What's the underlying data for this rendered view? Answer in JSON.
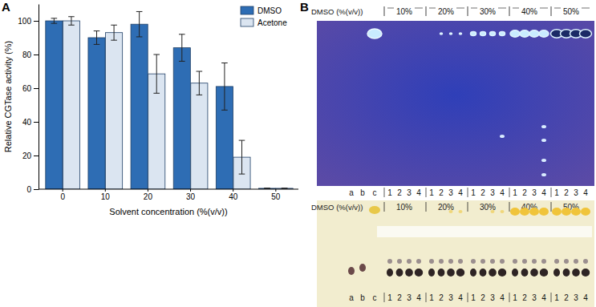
{
  "chart_data": {
    "type": "bar",
    "x_label": "Solvent concentration (%(v/v))",
    "y_label": "Relative CGTase activity (%)",
    "categories": [
      0,
      10,
      20,
      30,
      40,
      50
    ],
    "series": [
      {
        "name": "DMSO",
        "color": "#2e6db4",
        "values": [
          100,
          90,
          98,
          84,
          61,
          0.5
        ],
        "error": [
          1.5,
          4,
          7.5,
          8,
          14,
          0
        ]
      },
      {
        "name": "Acetone",
        "color": "#dbe5f1",
        "values": [
          100,
          93,
          68.5,
          63,
          19,
          0.5
        ],
        "error": [
          2.5,
          4.5,
          11.5,
          7,
          10,
          0
        ]
      }
    ],
    "ylim": [
      0,
      110
    ],
    "yticks": [
      0,
      20,
      40,
      60,
      80,
      100
    ],
    "legend": "upper right",
    "grid": false
  },
  "figure": {
    "panel_labels": [
      "A",
      "B"
    ],
    "tlc": {
      "plates": [
        {
          "axis_label": "DMSO (%(v/v))",
          "groups": [
            "10%",
            "20%",
            "30%",
            "40%",
            "50%"
          ],
          "lanes": [
            "1",
            "2",
            "3",
            "4"
          ],
          "standards": [
            "a",
            "b",
            "c"
          ]
        },
        {
          "axis_label": "DMSO (%(v/v))",
          "groups": [
            "10%",
            "20%",
            "30%",
            "40%",
            "50%"
          ],
          "lanes": [
            "1",
            "2",
            "3",
            "4"
          ],
          "standards": [
            "a",
            "b",
            "c"
          ]
        }
      ]
    }
  }
}
